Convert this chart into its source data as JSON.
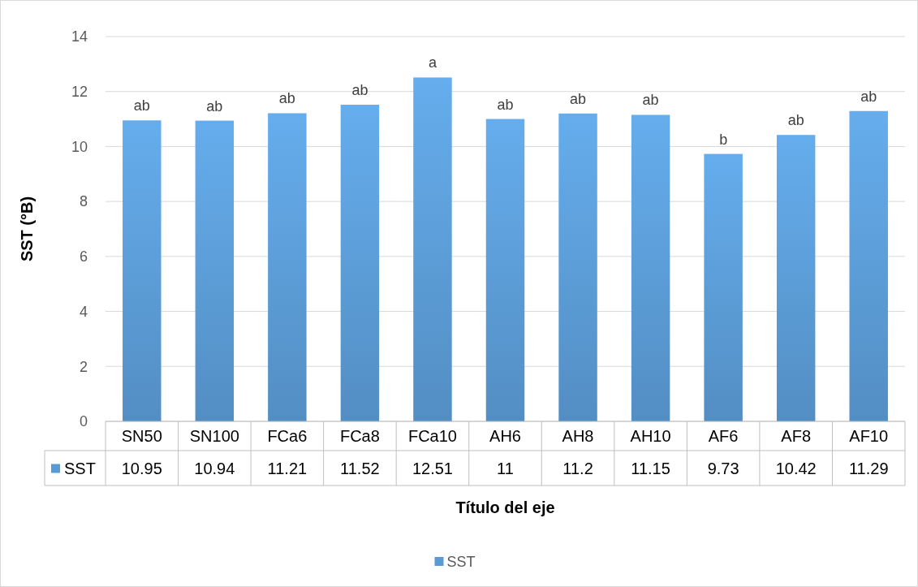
{
  "chart_data": {
    "type": "bar",
    "xlabel": "Título del eje",
    "ylabel": "SST (°B)",
    "categories": [
      "SN50",
      "SN100",
      "FCa6",
      "FCa8",
      "FCa10",
      "AH6",
      "AH8",
      "AH10",
      "AF6",
      "AF8",
      "AF10"
    ],
    "series": [
      {
        "name": "SST",
        "color": "#5b9bd5",
        "values": [
          10.95,
          10.94,
          11.21,
          11.52,
          12.51,
          11,
          11.2,
          11.15,
          9.73,
          10.42,
          11.29
        ]
      }
    ],
    "ylim": [
      0,
      14
    ],
    "yticks": [
      0,
      2,
      4,
      6,
      8,
      10,
      12,
      14
    ],
    "grid": "y",
    "legend": "bottom",
    "data_labels": true,
    "annotations": [
      {
        "text": "ab",
        "x": "SN50",
        "y": 10.95
      },
      {
        "text": "ab",
        "x": "SN100",
        "y": 10.94
      },
      {
        "text": "ab",
        "x": "FCa6",
        "y": 11.21
      },
      {
        "text": "ab",
        "x": "FCa8",
        "y": 11.52
      },
      {
        "text": "a",
        "x": "FCa10",
        "y": 12.51
      },
      {
        "text": "ab",
        "x": "AH6",
        "y": 11
      },
      {
        "text": "ab",
        "x": "AH8",
        "y": 11.2
      },
      {
        "text": "ab",
        "x": "AH10",
        "y": 11.15
      },
      {
        "text": "b",
        "x": "AF6",
        "y": 9.73
      },
      {
        "text": "ab",
        "x": "AF8",
        "y": 10.42
      },
      {
        "text": "ab",
        "x": "AF10",
        "y": 11.29
      }
    ]
  }
}
